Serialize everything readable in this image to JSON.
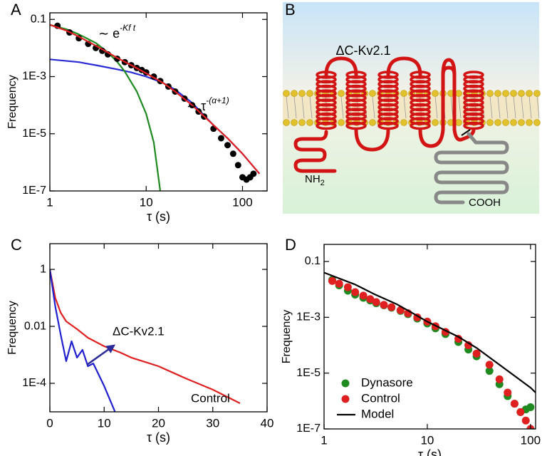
{
  "chart_data": [
    {
      "panel": "A",
      "type": "line",
      "xlog": true,
      "ylog": true,
      "xlim": [
        1,
        180
      ],
      "ylim": [
        1e-07,
        0.17
      ],
      "xticks": [
        1,
        10,
        100
      ],
      "yticks": [
        0.1,
        {
          "value": 0.001,
          "label": "1E-3"
        },
        {
          "value": 1e-05,
          "label": "1E-5"
        },
        {
          "value": 1e-07,
          "label": "1E-7"
        }
      ],
      "xlabel": "τ (s)",
      "ylabel": "Frequency",
      "annotations": [
        {
          "text": "∼ e",
          "sup": "-Kf t"
        },
        {
          "text": "∼ τ",
          "sup": "-(α+1)"
        }
      ],
      "series": [
        {
          "color": "#2a2ad6",
          "style": "line",
          "x": [
            1,
            2,
            3,
            5,
            7,
            10,
            15,
            20,
            30,
            50,
            70,
            100,
            150
          ],
          "values": [
            0.004,
            0.0032,
            0.0025,
            0.0018,
            0.0014,
            0.001,
            0.0006,
            0.00035,
            0.00012,
            2e-05,
            7e-06,
            2e-06,
            4e-07
          ]
        },
        {
          "color": "#1f8a1f",
          "style": "line",
          "x": [
            1,
            1.5,
            2,
            3,
            4,
            5,
            6,
            8,
            10,
            12,
            14
          ],
          "values": [
            0.065,
            0.045,
            0.03,
            0.015,
            0.007,
            0.0033,
            0.0015,
            0.0003,
            5e-05,
            5e-06,
            1e-07
          ]
        },
        {
          "color": "#000000",
          "style": "markers",
          "x": [
            1.2,
            1.6,
            2,
            2.5,
            3,
            3.5,
            4,
            5,
            6,
            7,
            8,
            9,
            10,
            12,
            14,
            17,
            20,
            25,
            30,
            35,
            40,
            50,
            60,
            70,
            80,
            90,
            100,
            110,
            120,
            130
          ],
          "values": [
            0.06,
            0.035,
            0.022,
            0.014,
            0.01,
            0.008,
            0.006,
            0.0042,
            0.0032,
            0.0025,
            0.002,
            0.0017,
            0.0014,
            0.001,
            0.0007,
            0.00045,
            0.0003,
            0.00017,
            0.0001,
            6e-05,
            4e-05,
            1.5e-05,
            7e-06,
            4e-06,
            2e-06,
            8e-07,
            3e-07,
            2.5e-07,
            3e-07,
            4e-07
          ]
        },
        {
          "color": "#e02020",
          "style": "line",
          "x": [
            1,
            1.5,
            2,
            3,
            4,
            5,
            7,
            10,
            15,
            20,
            30,
            50,
            70,
            100,
            150
          ],
          "values": [
            0.065,
            0.04,
            0.025,
            0.012,
            0.007,
            0.0045,
            0.0025,
            0.0013,
            0.0006,
            0.0003,
            0.0001,
            2e-05,
            7e-06,
            2e-06,
            4e-07
          ]
        }
      ]
    },
    {
      "panel": "C",
      "type": "line",
      "xlog": false,
      "ylog": true,
      "xlim": [
        0,
        40
      ],
      "ylim": [
        1e-05,
        8
      ],
      "xticks": [
        0,
        10,
        20,
        30,
        40
      ],
      "yticks": [
        1,
        0.01,
        {
          "value": 0.0001,
          "label": "1E-4"
        }
      ],
      "xlabel": "τ (s)",
      "ylabel": "Frequency",
      "series": [
        {
          "name": "Control",
          "color": "#e02020",
          "style": "line",
          "x": [
            0,
            1,
            2,
            3,
            5,
            7,
            10,
            13,
            15,
            20,
            25,
            30,
            35
          ],
          "values": [
            1,
            0.1,
            0.03,
            0.015,
            0.008,
            0.004,
            0.002,
            0.0012,
            0.0008,
            0.0004,
            0.00015,
            6e-05,
            2e-05
          ]
        },
        {
          "name": "ΔC-Kv2.1",
          "color": "#2020d0",
          "style": "line",
          "x": [
            0,
            1,
            2,
            3,
            4,
            5,
            6,
            7,
            8,
            10,
            12
          ],
          "values": [
            1,
            0.05,
            0.005,
            0.0006,
            0.003,
            0.0008,
            0.0015,
            0.0004,
            0.0005,
            8e-05,
            1e-05
          ]
        }
      ]
    },
    {
      "panel": "D",
      "type": "line",
      "xlog": true,
      "ylog": true,
      "xlim": [
        1,
        112
      ],
      "ylim": [
        1e-07,
        0.41
      ],
      "xticks": [
        1,
        10,
        100
      ],
      "yticks": [
        0.1,
        {
          "value": 0.001,
          "label": "1E-3"
        },
        {
          "value": 1e-05,
          "label": "1E-5"
        },
        {
          "value": 1e-07,
          "label": "1E-7"
        }
      ],
      "xlabel": "τ (s)",
      "ylabel": "Frequency",
      "legend": "lower left",
      "series": [
        {
          "name": "Dynasore",
          "color": "#1f8a1f",
          "style": "markers",
          "x": [
            1.2,
            1.4,
            1.7,
            2,
            2.4,
            2.8,
            3.2,
            3.8,
            4.5,
            5.5,
            6.5,
            8,
            10,
            12,
            15,
            20,
            25,
            30,
            40,
            50,
            60,
            70,
            80,
            90,
            100
          ],
          "values": [
            0.022,
            0.014,
            0.009,
            0.0065,
            0.005,
            0.004,
            0.0032,
            0.0027,
            0.0022,
            0.0017,
            0.0013,
            0.0009,
            0.0006,
            0.0004,
            0.00025,
            0.00013,
            7e-05,
            4e-05,
            1.2e-05,
            4e-06,
            1.5e-06,
            8e-07,
            4e-07,
            5e-07,
            6e-07
          ]
        },
        {
          "name": "Control",
          "color": "#e02020",
          "style": "markers",
          "x": [
            1.2,
            1.4,
            1.7,
            2,
            2.4,
            2.8,
            3.2,
            3.8,
            4.5,
            5.5,
            6.5,
            8,
            10,
            12,
            15,
            20,
            25,
            30,
            40,
            50,
            60,
            70,
            80,
            90,
            100
          ],
          "values": [
            0.02,
            0.016,
            0.012,
            0.008,
            0.006,
            0.0045,
            0.0035,
            0.0028,
            0.0023,
            0.0018,
            0.0014,
            0.001,
            0.0007,
            0.00048,
            0.0003,
            0.00017,
            0.0001,
            5e-05,
            2e-05,
            6e-06,
            2e-06,
            8e-07,
            4e-07,
            2e-07,
            1e-07
          ]
        },
        {
          "name": "Model",
          "color": "#000000",
          "style": "line",
          "x": [
            1,
            2,
            3,
            5,
            7,
            10,
            20,
            30,
            50,
            70,
            100,
            112
          ],
          "values": [
            0.04,
            0.015,
            0.007,
            0.003,
            0.0015,
            0.0007,
            0.0002,
            8e-05,
            2e-05,
            8e-06,
            3e-06,
            2e-06
          ]
        }
      ]
    }
  ],
  "diagram": {
    "panel": "B",
    "title": "ΔC-Kv2.1",
    "n_terminus": {
      "text": "NH",
      "sub": "2"
    },
    "c_terminus": "COOH"
  }
}
